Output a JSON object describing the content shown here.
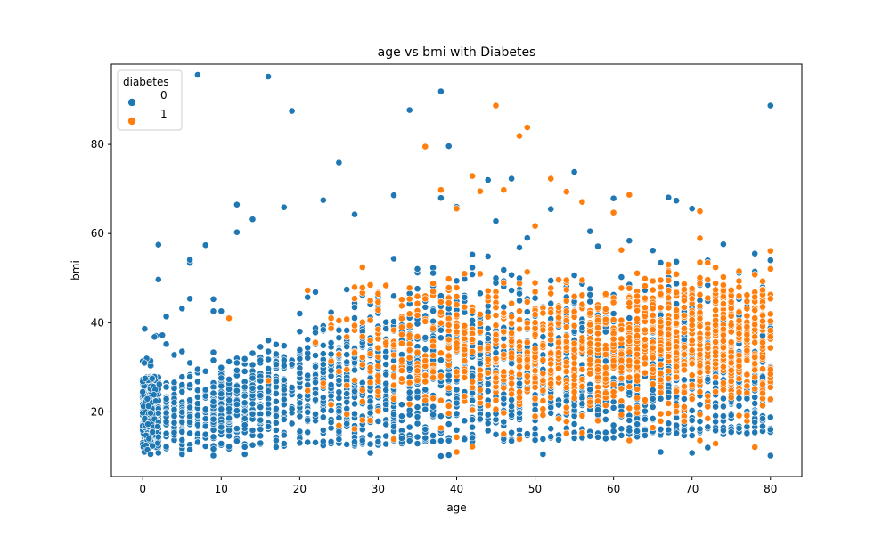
{
  "chart_data": {
    "type": "scatter",
    "title": "age vs bmi with Diabetes",
    "xlabel": "age",
    "ylabel": "bmi",
    "xlim": [
      -4,
      84
    ],
    "ylim": [
      5.5,
      98
    ],
    "xticks": [
      0,
      10,
      20,
      30,
      40,
      50,
      60,
      70,
      80
    ],
    "yticks": [
      20,
      40,
      60,
      80
    ],
    "grid": false,
    "legend": {
      "title": "diabetes",
      "placement": "top-left",
      "entries": [
        {
          "label": "0",
          "color": "#1f77b4"
        },
        {
          "label": "1",
          "color": "#ff7f0e"
        }
      ]
    },
    "series": [
      {
        "name": "0",
        "color": "#1f77b4",
        "points": [
          [
            7,
            95.6
          ],
          [
            16,
            95.2
          ],
          [
            38,
            91.9
          ],
          [
            19,
            87.5
          ],
          [
            34,
            87.7
          ],
          [
            80,
            88.7
          ],
          [
            25,
            75.9
          ],
          [
            39,
            79.6
          ],
          [
            55,
            73.8
          ],
          [
            47,
            72.3
          ],
          [
            44,
            72.0
          ],
          [
            38,
            68.0
          ],
          [
            60,
            67.9
          ],
          [
            67,
            68.1
          ],
          [
            68,
            67.4
          ],
          [
            32,
            68.6
          ],
          [
            23,
            67.5
          ],
          [
            12,
            66.5
          ],
          [
            18,
            65.9
          ],
          [
            70,
            65.6
          ],
          [
            40,
            66.0
          ],
          [
            52,
            65.5
          ],
          [
            14,
            63.2
          ],
          [
            27,
            64.3
          ],
          [
            6,
            53.4
          ],
          [
            6,
            54.1
          ],
          [
            2,
            57.5
          ],
          [
            2,
            49.7
          ],
          [
            8,
            57.4
          ],
          [
            12,
            60.3
          ],
          [
            3,
            41.4
          ],
          [
            5,
            43.2
          ],
          [
            6,
            45.4
          ],
          [
            9,
            45.3
          ],
          [
            9,
            42.6
          ],
          [
            10,
            42.6
          ],
          [
            74,
            57.6
          ],
          [
            78,
            55.5
          ],
          [
            80,
            54.0
          ],
          [
            62,
            58.4
          ],
          [
            57,
            60.5
          ],
          [
            45,
            62.8
          ],
          [
            0.2,
            11.0
          ],
          [
            0.4,
            12.5
          ],
          [
            0.6,
            11.5
          ],
          [
            1.0,
            10.5
          ],
          [
            0.8,
            14.0
          ],
          [
            2,
            10.8
          ],
          [
            5,
            10.5
          ],
          [
            9,
            10.2
          ],
          [
            13,
            10.5
          ],
          [
            29,
            10.8
          ],
          [
            38,
            10.1
          ],
          [
            39,
            10.3
          ],
          [
            51,
            10.5
          ],
          [
            66,
            11.0
          ],
          [
            70,
            10.8
          ],
          [
            80,
            10.2
          ],
          [
            72,
            12.0
          ],
          [
            1.5,
            36.8
          ],
          [
            2.5,
            37.2
          ],
          [
            3,
            35.2
          ],
          [
            4,
            32.8
          ],
          [
            1,
            31.5
          ],
          [
            0.5,
            32.0
          ],
          [
            76,
            51.2
          ],
          [
            79,
            46.8
          ],
          [
            0.2,
            31.0
          ],
          [
            0.3,
            27.5
          ],
          [
            1.2,
            27.5
          ],
          [
            2.1,
            26.2
          ]
        ],
        "band": {
          "x_min": 0,
          "x_max": 80,
          "y_low_start": 10,
          "y_low_end": 12,
          "y_high_start": 25,
          "y_high_end": 45,
          "y_peak": 57,
          "density": "dense"
        }
      },
      {
        "name": "1",
        "color": "#ff7f0e",
        "points": [
          [
            45,
            88.7
          ],
          [
            49,
            83.8
          ],
          [
            48,
            81.9
          ],
          [
            36,
            79.5
          ],
          [
            42,
            72.9
          ],
          [
            43,
            69.5
          ],
          [
            52,
            72.3
          ],
          [
            54,
            69.4
          ],
          [
            38,
            69.8
          ],
          [
            40,
            65.6
          ],
          [
            62,
            68.7
          ],
          [
            71,
            65.0
          ],
          [
            60,
            64.7
          ],
          [
            56,
            67.1
          ],
          [
            46,
            69.8
          ],
          [
            50,
            61.7
          ],
          [
            80,
            56.1
          ],
          [
            79,
            49.3
          ],
          [
            32,
            13.9
          ],
          [
            42,
            12.2
          ],
          [
            40,
            11.0
          ],
          [
            48,
            13.9
          ],
          [
            71,
            13.6
          ],
          [
            73,
            12.9
          ],
          [
            78,
            12.1
          ],
          [
            62,
            13.6
          ],
          [
            11,
            41.0
          ],
          [
            16,
            27.0
          ]
        ],
        "band": {
          "x_min": 18,
          "x_max": 80,
          "y_low": 14,
          "y_high": 58,
          "density": "medium",
          "center_shift": "older ages concentrated 60-80"
        }
      }
    ]
  }
}
